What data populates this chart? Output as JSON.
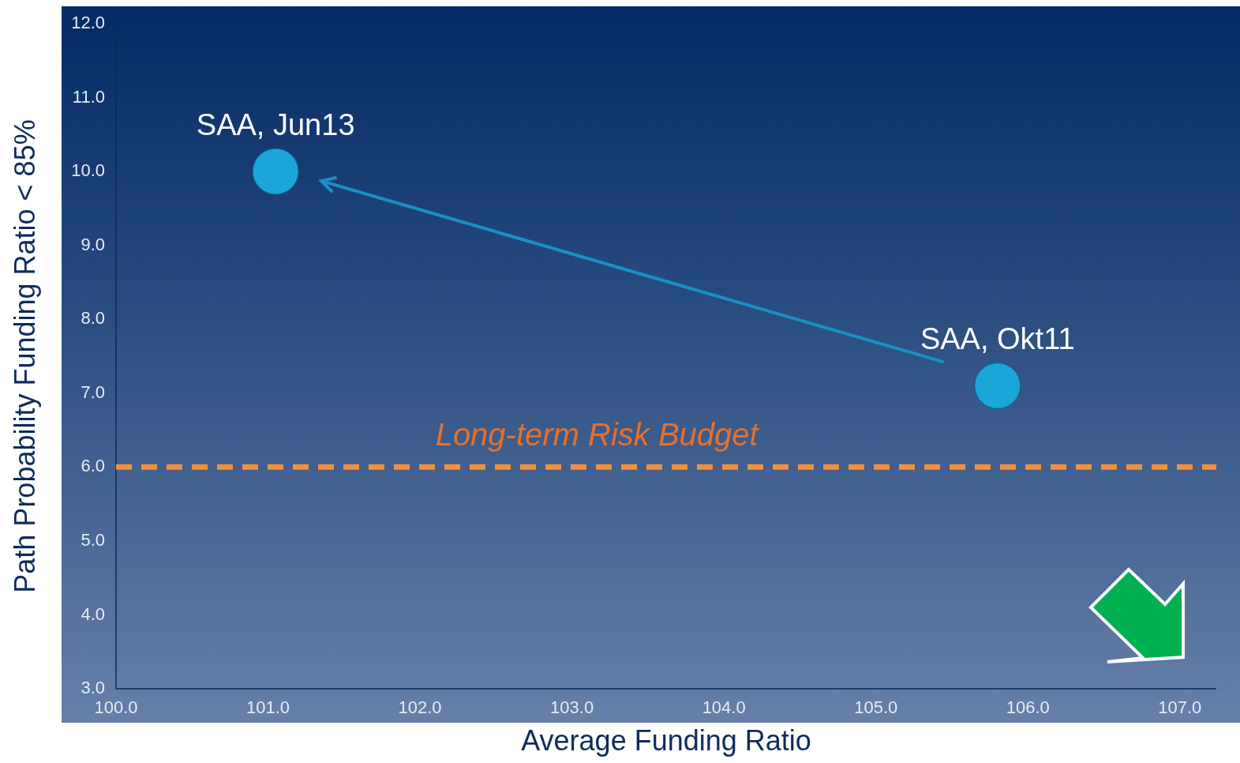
{
  "chart_data": {
    "type": "scatter",
    "xlabel": "Average Funding Ratio",
    "ylabel": "Path Probability Funding Ratio < 85%",
    "x": [
      105.8,
      101.05
    ],
    "series": [
      {
        "color": "#1aa6d9",
        "values": [
          7.1,
          10.0
        ]
      }
    ],
    "xlim": [
      100,
      107.24
    ],
    "xticks": [
      {
        "value": 100,
        "label": "100.0"
      },
      {
        "value": 101,
        "label": "101.0"
      },
      {
        "value": 102,
        "label": "102.0"
      },
      {
        "value": 103,
        "label": "103.0"
      },
      {
        "value": 104,
        "label": "104.0"
      },
      {
        "value": 105,
        "label": "105.0"
      },
      {
        "value": 106,
        "label": "106.0"
      },
      {
        "value": 107,
        "label": "107.0"
      }
    ],
    "ylim": [
      3,
      12
    ],
    "yticks": [
      {
        "value": 3,
        "label": "3.0"
      },
      {
        "value": 4,
        "label": "4.0"
      },
      {
        "value": 5,
        "label": "5.0"
      },
      {
        "value": 6,
        "label": "6.0"
      },
      {
        "value": 7,
        "label": "7.0"
      },
      {
        "value": 8,
        "label": "8.0"
      },
      {
        "value": 9,
        "label": "9.0"
      },
      {
        "value": 10,
        "label": "10.0"
      },
      {
        "value": 11,
        "label": "11.0"
      },
      {
        "value": 12,
        "label": "12.0"
      }
    ],
    "ref_lines": [
      {
        "axis": "y",
        "value": 6.0,
        "label": "Long-term Risk Budget",
        "color": "#f4903a",
        "line_style": "dashed"
      }
    ],
    "annotations": [
      {
        "text": "SAA, Okt11",
        "x": 105.8,
        "y": 7.1
      },
      {
        "text": "SAA, Jun13",
        "x": 101.05,
        "y": 10.0
      }
    ],
    "grid": false,
    "legend": false,
    "marker": "circle"
  }
}
